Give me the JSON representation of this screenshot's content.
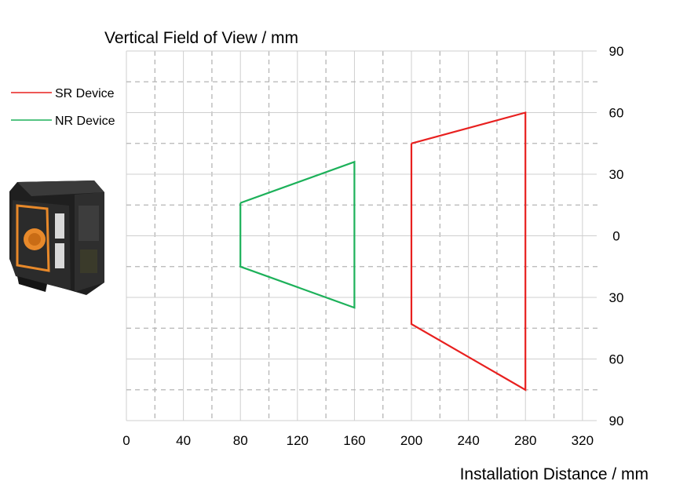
{
  "chart_data": {
    "type": "line",
    "title": "Vertical  Field of View / mm",
    "xlabel": "Installation Distance / mm",
    "ylabel": "",
    "xlim": [
      0,
      330
    ],
    "ylim": [
      -90,
      90
    ],
    "x_ticks": [
      0,
      40,
      80,
      120,
      160,
      200,
      240,
      280,
      320
    ],
    "y_ticks": [
      90,
      60,
      30,
      0,
      -30,
      -60,
      -90
    ],
    "y_tick_labels": [
      "90",
      "60",
      "30",
      "0",
      "30",
      "60",
      "90"
    ],
    "grid": true,
    "legend": "top-left",
    "series": [
      {
        "name": "SR Device",
        "color": "#e8201f",
        "points": [
          [
            200,
            45
          ],
          [
            280,
            60
          ],
          [
            280,
            -75
          ],
          [
            200,
            -43
          ],
          [
            200,
            45
          ]
        ]
      },
      {
        "name": "NR Device",
        "color": "#1db15a",
        "points": [
          [
            80,
            16
          ],
          [
            160,
            36
          ],
          [
            160,
            -35
          ],
          [
            80,
            -15
          ],
          [
            80,
            16
          ]
        ]
      }
    ]
  },
  "device_image": {
    "name": "camera-device-photo",
    "accent_color": "#e8892a",
    "body_color": "#2b2b2b"
  }
}
